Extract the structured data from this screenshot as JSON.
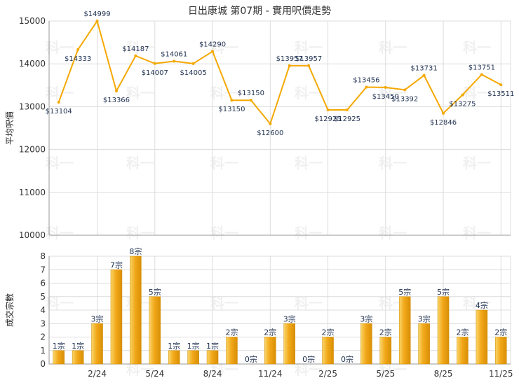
{
  "chart_data": [
    {
      "type": "line",
      "title": "日出康城 第07期 - 實用呎價走勢",
      "ylabel": "平均呎價",
      "ylim": [
        10000,
        15000
      ],
      "yticks": [
        10000,
        11000,
        12000,
        13000,
        14000,
        15000
      ],
      "grid": true,
      "color": "#f5a800",
      "series": [
        {
          "values": [
            13104,
            14333,
            14999,
            13366,
            14187,
            14007,
            14061,
            14005,
            14290,
            13150,
            13150,
            12600,
            13957,
            13957,
            12925,
            12925,
            13456,
            13450,
            13392,
            13731,
            12846,
            13275,
            13751,
            13511
          ],
          "labels": [
            "$13104",
            "$14333",
            "$14999",
            "$13366",
            "$14187",
            "$14007",
            "$14061",
            "$14005",
            "$14290",
            "$13150",
            "$13150",
            "$12600",
            "$13957",
            "$13957",
            "$12925",
            "$12925",
            "$13456",
            "$13450",
            "$13392",
            "$13731",
            "$12846",
            "$13275",
            "$13751",
            "$13511"
          ]
        }
      ]
    },
    {
      "type": "bar",
      "ylabel": "成交宗數",
      "ylim": [
        0,
        8
      ],
      "yticks": [
        0,
        1,
        2,
        3,
        4,
        5,
        6,
        7,
        8
      ],
      "grid": true,
      "color": "#f5a800",
      "categories": [
        "",
        "",
        "2/24",
        "",
        "",
        "5/24",
        "",
        "",
        "8/24",
        "",
        "",
        "11/24",
        "",
        "",
        "2/25",
        "",
        "",
        "5/25",
        "",
        "",
        "8/25",
        "",
        "",
        "11/25"
      ],
      "values": [
        1,
        1,
        3,
        7,
        8,
        5,
        1,
        1,
        1,
        2,
        0,
        2,
        3,
        0,
        2,
        0,
        3,
        2,
        5,
        3,
        5,
        2,
        4,
        2
      ],
      "labels": [
        "1宗",
        "1宗",
        "3宗",
        "7宗",
        "8宗",
        "5宗",
        "1宗",
        "1宗",
        "1宗",
        "2宗",
        "0宗",
        "2宗",
        "3宗",
        "0宗",
        "2宗",
        "0宗",
        "3宗",
        "2宗",
        "5宗",
        "3宗",
        "5宗",
        "2宗",
        "4宗",
        "2宗"
      ]
    }
  ],
  "watermark": "科一"
}
